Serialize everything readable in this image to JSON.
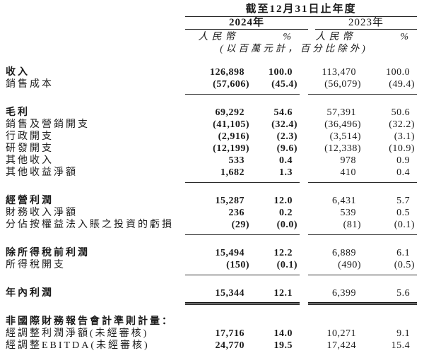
{
  "colors": {
    "background": "#ffffff",
    "text": "#1a1a1a",
    "rule": "#222222"
  },
  "header": {
    "period_title": "截至12月31日止年度",
    "year_2024": "2024年",
    "year_2023": "2023年",
    "currency_label": "人民幣",
    "percent_label": "%",
    "unit_note": "(以百萬元計，百分比除外)"
  },
  "table": {
    "column_keys": [
      "label",
      "rmb_2024",
      "pct_2024",
      "rmb_2023",
      "pct_2023"
    ],
    "rows": [
      {
        "label": "收入",
        "bold": true,
        "values": [
          "126,898",
          "100.0",
          "113,470",
          "100.0"
        ],
        "rule": null,
        "gap_after": false
      },
      {
        "label": "銷售成本",
        "bold": false,
        "values": [
          "(57,606)",
          "(45.4)",
          "(56,079)",
          "(49.4)"
        ],
        "rule": "single",
        "gap_after": true
      },
      {
        "label": "毛利",
        "bold": true,
        "values": [
          "69,292",
          "54.6",
          "57,391",
          "50.6"
        ],
        "rule": null,
        "gap_after": false
      },
      {
        "label": "銷售及營銷開支",
        "bold": false,
        "values": [
          "(41,105)",
          "(32.4)",
          "(36,496)",
          "(32.2)"
        ],
        "rule": null,
        "gap_after": false
      },
      {
        "label": "行政開支",
        "bold": false,
        "values": [
          "(2,916)",
          "(2.3)",
          "(3,514)",
          "(3.1)"
        ],
        "rule": null,
        "gap_after": false
      },
      {
        "label": "研發開支",
        "bold": false,
        "values": [
          "(12,199)",
          "(9.6)",
          "(12,338)",
          "(10.9)"
        ],
        "rule": null,
        "gap_after": false
      },
      {
        "label": "其他收入",
        "bold": false,
        "values": [
          "533",
          "0.4",
          "978",
          "0.9"
        ],
        "rule": null,
        "gap_after": false
      },
      {
        "label": "其他收益淨額",
        "bold": false,
        "values": [
          "1,682",
          "1.3",
          "410",
          "0.4"
        ],
        "rule": "single",
        "gap_after": true
      },
      {
        "label": "經營利潤",
        "bold": true,
        "values": [
          "15,287",
          "12.0",
          "6,431",
          "5.7"
        ],
        "rule": null,
        "gap_after": false
      },
      {
        "label": "財務收入淨額",
        "bold": false,
        "values": [
          "236",
          "0.2",
          "539",
          "0.5"
        ],
        "rule": null,
        "gap_after": false
      },
      {
        "label": "分佔按權益法入賬之投資的虧損",
        "bold": false,
        "values": [
          "(29)",
          "(0.0)",
          "(81)",
          "(0.1)"
        ],
        "rule": "single",
        "gap_after": true
      },
      {
        "label": "除所得稅前利潤",
        "bold": true,
        "values": [
          "15,494",
          "12.2",
          "6,889",
          "6.1"
        ],
        "rule": null,
        "gap_after": false
      },
      {
        "label": "所得稅開支",
        "bold": false,
        "values": [
          "(150)",
          "(0.1)",
          "(490)",
          "(0.5)"
        ],
        "rule": "single",
        "gap_after": true
      },
      {
        "label": "年內利潤",
        "bold": true,
        "values": [
          "15,344",
          "12.1",
          "6,399",
          "5.6"
        ],
        "rule": "double",
        "gap_after": true
      },
      {
        "label": "非國際財務報告會計準則計量：",
        "bold": true,
        "values": [
          "",
          "",
          "",
          ""
        ],
        "rule": null,
        "gap_after": false
      },
      {
        "label": "經調整利潤淨額(未經審核)",
        "bold": false,
        "values": [
          "17,716",
          "14.0",
          "10,271",
          "9.1"
        ],
        "rule": null,
        "gap_after": false
      },
      {
        "label": "經調整EBITDA(未經審核)",
        "bold": false,
        "values": [
          "24,770",
          "19.5",
          "17,424",
          "15.4"
        ],
        "rule": null,
        "gap_after": false
      }
    ]
  }
}
